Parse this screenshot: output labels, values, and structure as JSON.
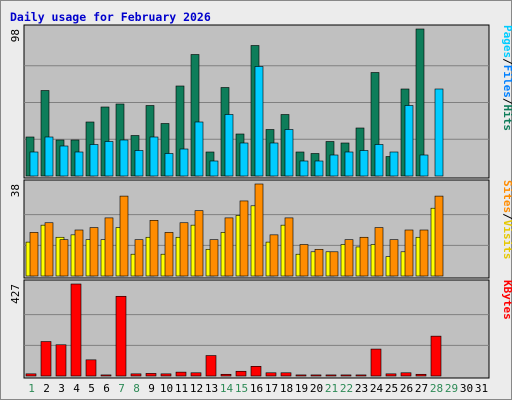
{
  "title": "Daily usage for February 2026",
  "colors": {
    "hits": "#0e7d5a",
    "files": "#00ccff",
    "pages": "#00ccff",
    "visits": "#ffff00",
    "sites": "#ff8c00",
    "kbytes": "#ff0000",
    "weekend_label": "#2e8b57",
    "weekday_label": "#000000",
    "panel_bg": "#c0c0c0",
    "outer_bg": "#ececec"
  },
  "chart_data": [
    {
      "type": "bar",
      "panel": "hits-files-pages",
      "categories": [
        "1",
        "2",
        "3",
        "4",
        "5",
        "6",
        "7",
        "8",
        "9",
        "10",
        "11",
        "12",
        "13",
        "14",
        "15",
        "16",
        "17",
        "18",
        "19",
        "20",
        "21",
        "22",
        "23",
        "24",
        "25",
        "26",
        "27",
        "28",
        "29",
        "30",
        "31"
      ],
      "weekend_days": [
        "1",
        "7",
        "8",
        "14",
        "15",
        "21",
        "22",
        "28",
        "29"
      ],
      "ylim": [
        0,
        98
      ],
      "ytick_label": "98",
      "series": [
        {
          "name": "Hits",
          "values": [
            26,
            57,
            24,
            24,
            36,
            46,
            48,
            27,
            47,
            35,
            60,
            81,
            16,
            59,
            28,
            87,
            31,
            41,
            16,
            15,
            23,
            22,
            32,
            69,
            13,
            58,
            98,
            0,
            0,
            0,
            0
          ]
        },
        {
          "name": "Files",
          "values": [
            16,
            26,
            20,
            16,
            21,
            23,
            24,
            17,
            26,
            15,
            18,
            36,
            10,
            41,
            22,
            73,
            22,
            31,
            10,
            10,
            14,
            16,
            17,
            21,
            16,
            47,
            14,
            58,
            0,
            0,
            0
          ]
        },
        {
          "name": "Pages",
          "values": [
            0,
            0,
            0,
            0,
            0,
            0,
            0,
            0,
            0,
            0,
            0,
            0,
            0,
            0,
            0,
            0,
            0,
            0,
            0,
            0,
            0,
            0,
            0,
            0,
            0,
            0,
            0,
            0,
            0,
            0,
            0
          ]
        }
      ],
      "right_label_parts": [
        "Pages",
        "/",
        "Files",
        "/",
        "Hits"
      ]
    },
    {
      "type": "bar",
      "panel": "visits-sites",
      "categories": [
        "1",
        "2",
        "3",
        "4",
        "5",
        "6",
        "7",
        "8",
        "9",
        "10",
        "11",
        "12",
        "13",
        "14",
        "15",
        "16",
        "17",
        "18",
        "19",
        "20",
        "21",
        "22",
        "23",
        "24",
        "25",
        "26",
        "27",
        "28",
        "29",
        "30",
        "31"
      ],
      "ylim": [
        0,
        38
      ],
      "ytick_label": "38",
      "series": [
        {
          "name": "Visits",
          "values": [
            14,
            21,
            16,
            17,
            15,
            15,
            20,
            9,
            16,
            9,
            16,
            21,
            11,
            18,
            25,
            29,
            14,
            21,
            9,
            10,
            10,
            13,
            12,
            13,
            8,
            10,
            16,
            28,
            0,
            0,
            0
          ]
        },
        {
          "name": "Sites",
          "values": [
            18,
            22,
            15,
            19,
            20,
            24,
            33,
            15,
            23,
            18,
            22,
            27,
            15,
            24,
            31,
            38,
            17,
            24,
            13,
            11,
            10,
            15,
            16,
            20,
            15,
            19,
            19,
            33,
            0,
            0,
            0
          ]
        }
      ],
      "right_label_parts": [
        "Sites",
        "/",
        "Visits"
      ]
    },
    {
      "type": "bar",
      "panel": "kbytes",
      "categories": [
        "1",
        "2",
        "3",
        "4",
        "5",
        "6",
        "7",
        "8",
        "9",
        "10",
        "11",
        "12",
        "13",
        "14",
        "15",
        "16",
        "17",
        "18",
        "19",
        "20",
        "21",
        "22",
        "23",
        "24",
        "25",
        "26",
        "27",
        "28",
        "29",
        "30",
        "31"
      ],
      "ylim": [
        0,
        427
      ],
      "ytick_label": "427",
      "series": [
        {
          "name": "KBytes",
          "values": [
            10,
            160,
            145,
            427,
            75,
            5,
            370,
            10,
            12,
            10,
            18,
            15,
            95,
            8,
            22,
            45,
            15,
            15,
            5,
            5,
            5,
            5,
            5,
            125,
            10,
            15,
            8,
            185,
            0,
            0,
            0
          ]
        }
      ],
      "right_label_parts": [
        "KBytes"
      ]
    }
  ]
}
